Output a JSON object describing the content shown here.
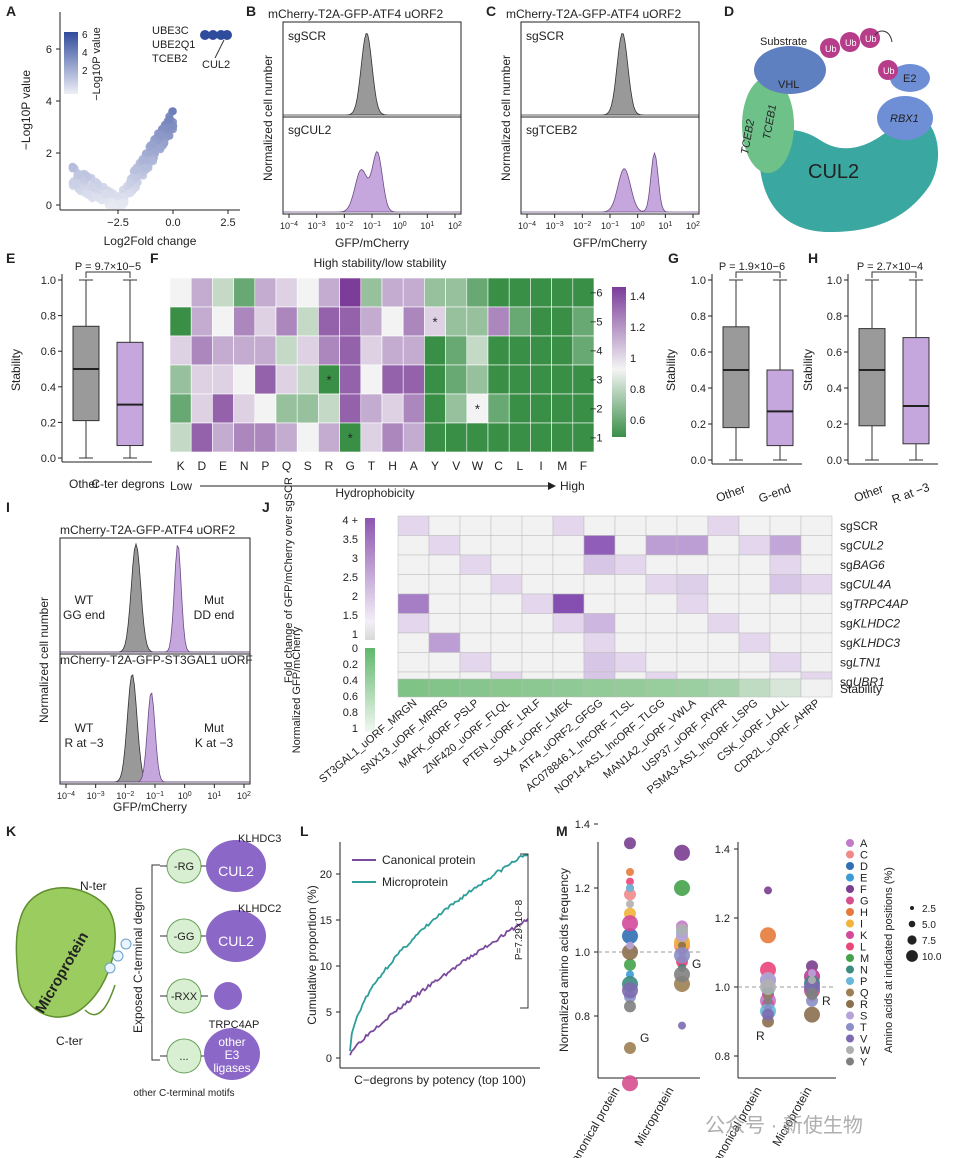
{
  "panels": {
    "A": {
      "letter": "A",
      "ylabel": "−Log10P value",
      "xlabel": "Log2Fold change",
      "yticks": [
        "0",
        "2",
        "4",
        "6"
      ],
      "xticks": [
        "−2.5",
        "0.0",
        "2.5"
      ],
      "colorbar_title": "−Log10P value",
      "colorbar_ticks": [
        "6",
        "4",
        "2"
      ],
      "hits": [
        "UBE3C",
        "UBE2Q1",
        "TCEB2",
        "CUL2"
      ]
    },
    "B": {
      "letter": "B",
      "title": "mCherry-T2A-GFP-ATF4 uORF2",
      "ylabel": "Normalized cell number",
      "xlabel": "GFP/mCherry",
      "top_label": "sgSCR",
      "bottom_label": "sgCUL2",
      "xticks": [
        "10−4",
        "10−3",
        "10−2",
        "10−1",
        "100",
        "101",
        "102"
      ]
    },
    "C": {
      "letter": "C",
      "title": "mCherry-T2A-GFP-ATF4 uORF2",
      "ylabel": "Normalized cell number",
      "xlabel": "GFP/mCherry",
      "top_label": "sgSCR",
      "bottom_label": "sgTCEB2",
      "xticks": [
        "10−4",
        "10−3",
        "10−2",
        "10−1",
        "100",
        "101",
        "102"
      ]
    },
    "D": {
      "letter": "D",
      "labels": [
        "Substrate",
        "Ub",
        "Ub",
        "Ub",
        "Ub",
        "E2",
        "VHL",
        "TCEB2",
        "TCEB1",
        "RBX1",
        "CUL2"
      ]
    },
    "E": {
      "letter": "E",
      "pvalue": "P = 9.7×10−5",
      "ylabel": "Stability",
      "yticks": [
        "0.0",
        "0.2",
        "0.4",
        "0.6",
        "0.8",
        "1.0"
      ],
      "categories": [
        "Other",
        "C-ter degrons"
      ]
    },
    "F": {
      "letter": "F",
      "title": "High stability/low stability",
      "columns": [
        "K",
        "D",
        "E",
        "N",
        "P",
        "Q",
        "S",
        "R",
        "G",
        "T",
        "H",
        "A",
        "Y",
        "V",
        "W",
        "C",
        "L",
        "I",
        "M",
        "F"
      ],
      "rows": [
        "−6",
        "−5",
        "−4",
        "−3",
        "−2",
        "−1"
      ],
      "low": "Low",
      "axis": "Hydrophobicity",
      "high": "High",
      "scale_ticks": [
        "1.4",
        "1.2",
        "1",
        "0.8",
        "0.6"
      ]
    },
    "G": {
      "letter": "G",
      "pvalue": "P = 1.9×10−6",
      "ylabel": "Stability",
      "yticks": [
        "0.0",
        "0.2",
        "0.4",
        "0.6",
        "0.8",
        "1.0"
      ],
      "categories": [
        "Other",
        "G-end"
      ]
    },
    "H": {
      "letter": "H",
      "pvalue": "P = 2.7×10−4",
      "ylabel": "Stability",
      "yticks": [
        "0.0",
        "0.2",
        "0.4",
        "0.6",
        "0.8",
        "1.0"
      ],
      "categories": [
        "Other",
        "R at −3"
      ]
    },
    "I": {
      "letter": "I",
      "title_top": "mCherry-T2A-GFP-ATF4 uORF2",
      "title_bottom": "mCherry-T2A-GFP-ST3GAL1 uORF",
      "wt_top": [
        "WT",
        "GG end"
      ],
      "mut_top": [
        "Mut",
        "DD end"
      ],
      "wt_bottom": [
        "WT",
        "R at −3"
      ],
      "mut_bottom": [
        "Mut",
        "K at −3"
      ],
      "ylabel": "Normalized cell number",
      "xlabel": "GFP/mCherry",
      "xticks": [
        "10−4",
        "10−3",
        "10−2",
        "10−1",
        "100",
        "101",
        "102"
      ]
    },
    "J": {
      "letter": "J",
      "scale1_title": "Fold change of GFP/mCherry over sgSCR",
      "scale1_ticks": [
        "4 +",
        "3.5",
        "3",
        "2.5",
        "2",
        "1.5",
        "1"
      ],
      "scale2_title": "Normalized GFP/mCherry",
      "scale2_ticks": [
        "0",
        "0.2",
        "0.4",
        "0.6",
        "0.8",
        "1"
      ],
      "rows": [
        "sgSCR",
        "sgCUL2",
        "sgBAG6",
        "sgCUL4A",
        "sgTRPC4AP",
        "sgKLHDC2",
        "sgKLHDC3",
        "sgLTN1",
        "sgUBR1"
      ],
      "stability_label": "Stability",
      "columns": [
        "ST3GAL1_uORF_MRGN",
        "SNX13_uORF_MRRG",
        "MAFK_dORF_PSLP",
        "ZNF420_uORF_FLQL",
        "PTEN_uORF_LRLF",
        "SLX4_uORF_LMEK",
        "ATF4_uORF2_GFGG",
        "AC078846.1_lncORF_TLSL",
        "NOP14-AS1_lncORF_TLGG",
        "MAN1A2_uORF_VWLA",
        "USP37_uORF_RVFR",
        "PSMA3-AS1_lncORF_LSPG",
        "CSK_uORF_LALL",
        "CDR2L_uORF_AHRP"
      ]
    },
    "K": {
      "letter": "K",
      "nter": "N-ter",
      "cter": "C-ter",
      "microprotein": "Microprotein",
      "axis_label": "Exposed C-terminal degron",
      "motifs": [
        "-RG",
        "-GG",
        "-RXX",
        "..."
      ],
      "ligases": [
        "KLHDC3",
        "CUL2",
        "KLHDC2",
        "CUL2",
        "TRPC4AP",
        "other E3 ligases"
      ],
      "other_motifs": "other C-terminal motifs"
    },
    "L": {
      "letter": "L",
      "ylabel": "Cumulative proportion (%)",
      "xlabel": "C−degrons by potency (top 100)",
      "legend": [
        "Canonical protein",
        "Microprotein"
      ],
      "yticks": [
        "0",
        "5",
        "10",
        "15",
        "20"
      ],
      "pvalue": "P=7.29×10−8"
    },
    "M": {
      "letter": "M",
      "ylabel": "Normalized amino acids frequency",
      "yticks_left": [
        "0.8",
        "1.0",
        "1.2",
        "1.4"
      ],
      "yticks_right": [
        "0.8",
        "1.0",
        "1.2",
        "1.4"
      ],
      "categories": [
        "Canonical protein",
        "Microprotein"
      ],
      "labels_left": [
        "G",
        "G"
      ],
      "labels_right": [
        "R",
        "R"
      ],
      "aa": [
        "A",
        "C",
        "D",
        "E",
        "F",
        "G",
        "H",
        "I",
        "K",
        "L",
        "M",
        "N",
        "P",
        "Q",
        "R",
        "S",
        "T",
        "V",
        "W",
        "Y"
      ],
      "size_title": "Amino acids at indicated positions (%)",
      "size_ticks": [
        "2.5",
        "5.0",
        "7.5",
        "10.0"
      ]
    }
  },
  "watermark": "公众号 · 新使生物",
  "colors": {
    "purple": "#9b6fbf",
    "light_purple": "#c6a7dd",
    "grey": "#9a9a9a",
    "green_dark": "#3a8f47",
    "teal": "#2e9e9a",
    "navy": "#2f4b9c"
  }
}
